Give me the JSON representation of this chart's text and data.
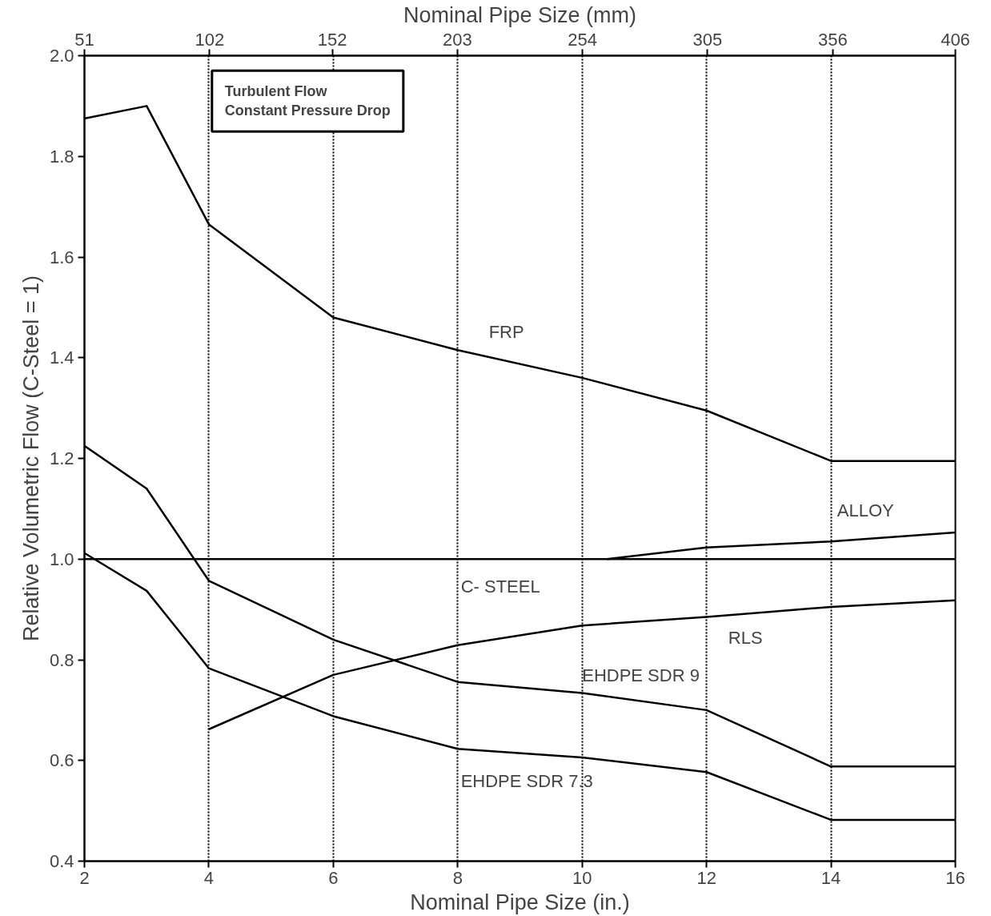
{
  "chart_data": {
    "type": "line",
    "xlabel": "Nominal Pipe Size (in.)",
    "x2label": "Nominal Pipe Size (mm)",
    "ylabel": "Relative Volumetric Flow (C-Steel = 1)",
    "x": [
      2,
      3,
      4,
      6,
      8,
      10,
      12,
      14,
      16
    ],
    "series": [
      {
        "name": "FRP",
        "color": "#000000",
        "values": [
          1.875,
          1.9,
          1.665,
          1.48,
          1.415,
          1.36,
          1.295,
          1.195,
          1.195
        ]
      },
      {
        "name": "ALLOY",
        "color": "#000000",
        "x": [
          10.4,
          12,
          14,
          16
        ],
        "values": [
          1.0,
          1.023,
          1.035,
          1.053
        ]
      },
      {
        "name": "C- STEEL",
        "color": "#000000",
        "x": [
          2,
          16
        ],
        "values": [
          1.0,
          1.0
        ]
      },
      {
        "name": "RLS",
        "color": "#000000",
        "values": [
          null,
          null,
          0.662,
          0.77,
          0.829,
          0.868,
          0.885,
          0.905,
          0.918
        ]
      },
      {
        "name": "EHDPE SDR 9",
        "color": "#000000",
        "values": [
          1.225,
          1.14,
          0.957,
          0.84,
          0.756,
          0.734,
          0.7,
          0.588,
          0.588
        ]
      },
      {
        "name": "EHDPE SDR 7.3",
        "color": "#000000",
        "values": [
          1.012,
          0.937,
          0.783,
          0.688,
          0.623,
          0.606,
          0.577,
          0.482,
          0.482
        ]
      }
    ],
    "xlim": [
      2,
      16
    ],
    "xticks": [
      2,
      4,
      6,
      8,
      10,
      12,
      14,
      16
    ],
    "x2lim": [
      51,
      406
    ],
    "x2ticks": [
      51,
      102,
      152,
      203,
      254,
      305,
      356,
      406
    ],
    "ylim": [
      0.4,
      2.0
    ],
    "yticks": [
      0.4,
      0.6,
      0.8,
      {
        "value": 1.0,
        "label": "1.0"
      },
      1.2,
      1.4,
      1.6,
      1.8,
      {
        "value": 2.0,
        "label": "2.0"
      }
    ],
    "grid": "x",
    "marker": "none",
    "line_style": "solid",
    "legend": false,
    "annotations": [
      "Turbulent Flow\nConstant Pressure Drop"
    ]
  }
}
